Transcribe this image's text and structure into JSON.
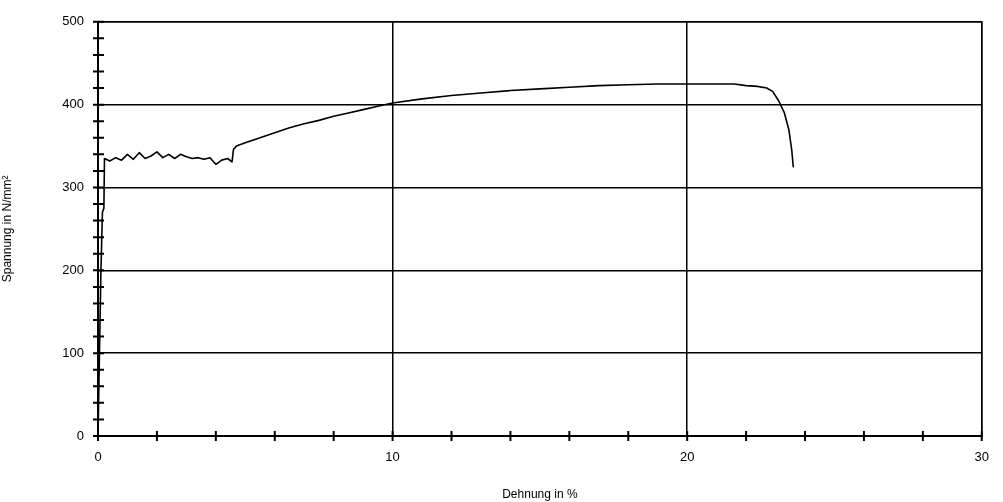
{
  "chart_data": {
    "type": "line",
    "xlabel": "Dehnung in %",
    "ylabel": "Spannung in N/mm²",
    "x": [
      0,
      0.05,
      0.1,
      0.15,
      0.2,
      0.22,
      0.4,
      0.6,
      0.8,
      1.0,
      1.2,
      1.4,
      1.6,
      1.8,
      2.0,
      2.2,
      2.4,
      2.6,
      2.8,
      3.0,
      3.2,
      3.4,
      3.6,
      3.8,
      4.0,
      4.2,
      4.4,
      4.55,
      4.6,
      4.7,
      5,
      5.5,
      6,
      6.5,
      7,
      7.5,
      8,
      8.5,
      9,
      9.5,
      10,
      11,
      12,
      13,
      14,
      15,
      16,
      17,
      18,
      19,
      20,
      21,
      21.6,
      22,
      22.4,
      22.7,
      22.9,
      23.1,
      23.3,
      23.45,
      23.55,
      23.6
    ],
    "values": [
      0,
      100,
      200,
      270,
      275,
      335,
      332,
      336,
      333,
      340,
      334,
      342,
      335,
      338,
      343,
      336,
      340,
      335,
      340,
      337,
      335,
      336,
      334,
      336,
      328,
      333,
      335,
      331,
      346,
      350,
      354,
      360,
      366,
      372,
      377,
      381,
      386,
      390,
      394,
      398,
      402,
      407,
      411,
      414,
      417,
      419,
      421,
      423,
      424,
      425,
      425,
      425,
      425,
      423,
      422,
      420,
      416,
      405,
      390,
      370,
      345,
      325
    ],
    "color": "#000000",
    "marker": "none",
    "line_style": "solid",
    "xlim": [
      0,
      30
    ],
    "xticks": [
      0,
      {
        "value": 2,
        "label": null
      },
      {
        "value": 4,
        "label": null
      },
      {
        "value": 6,
        "label": null
      },
      {
        "value": 8,
        "label": null
      },
      10,
      {
        "value": 12,
        "label": null
      },
      {
        "value": 14,
        "label": null
      },
      {
        "value": 16,
        "label": null
      },
      {
        "value": 18,
        "label": null
      },
      20,
      {
        "value": 22,
        "label": null
      },
      {
        "value": 24,
        "label": null
      },
      {
        "value": 26,
        "label": null
      },
      {
        "value": 28,
        "label": null
      },
      30
    ],
    "ylim": [
      0,
      500
    ],
    "yticks": [
      0,
      {
        "value": 20,
        "label": null
      },
      {
        "value": 40,
        "label": null
      },
      {
        "value": 60,
        "label": null
      },
      {
        "value": 80,
        "label": null
      },
      100,
      {
        "value": 120,
        "label": null
      },
      {
        "value": 140,
        "label": null
      },
      {
        "value": 160,
        "label": null
      },
      {
        "value": 180,
        "label": null
      },
      200,
      {
        "value": 220,
        "label": null
      },
      {
        "value": 240,
        "label": null
      },
      {
        "value": 260,
        "label": null
      },
      {
        "value": 280,
        "label": null
      },
      300,
      {
        "value": 320,
        "label": null
      },
      {
        "value": 340,
        "label": null
      },
      {
        "value": 360,
        "label": null
      },
      {
        "value": 380,
        "label": null
      },
      400,
      {
        "value": 420,
        "label": null
      },
      {
        "value": 440,
        "label": null
      },
      {
        "value": 460,
        "label": null
      },
      {
        "value": 480,
        "label": null
      },
      500
    ],
    "grid": true,
    "legend": false
  }
}
